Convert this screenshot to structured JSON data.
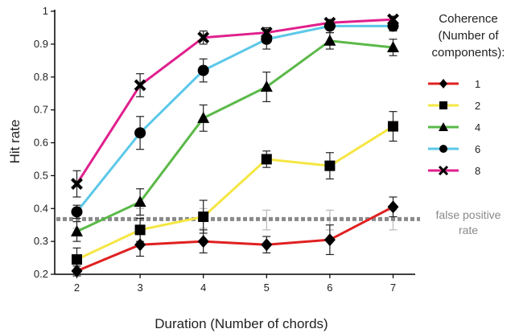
{
  "chart_data": {
    "type": "line",
    "xlabel": "Duration (Number of chords)",
    "ylabel": "Hit rate",
    "x": [
      2,
      3,
      4,
      5,
      6,
      7
    ],
    "xlim": [
      1.65,
      7.35
    ],
    "ylim": [
      0.2,
      1.0
    ],
    "yticks": [
      0.2,
      0.3,
      0.4,
      0.5,
      0.6,
      0.7,
      0.8,
      0.9,
      1
    ],
    "ytick_labels": [
      "0.2",
      "0.3",
      "0.4",
      "0.5",
      "0.6",
      "0.7",
      "0.8",
      "0.9",
      "1"
    ],
    "xtick_labels": [
      "2",
      "3",
      "4",
      "5",
      "6",
      "7"
    ],
    "legend": {
      "title_lines": [
        "Coherence",
        "(Number of",
        "components):"
      ],
      "placement": "right"
    },
    "series": [
      {
        "name": "1",
        "color": "#e02020",
        "marker": "diamond",
        "values": [
          0.21,
          0.29,
          0.3,
          0.29,
          0.305,
          0.405
        ],
        "err": [
          0.015,
          0.035,
          0.035,
          0.025,
          0.045,
          0.03
        ]
      },
      {
        "name": "2",
        "color": "#f5e642",
        "marker": "square",
        "values": [
          0.245,
          0.335,
          0.375,
          0.55,
          0.53,
          0.65
        ],
        "err": [
          0.035,
          0.035,
          0.05,
          0.025,
          0.04,
          0.045
        ]
      },
      {
        "name": "4",
        "color": "#5ab948",
        "marker": "triangle",
        "values": [
          0.33,
          0.42,
          0.675,
          0.77,
          0.91,
          0.89
        ],
        "err": [
          0.03,
          0.04,
          0.04,
          0.045,
          0.025,
          0.025
        ]
      },
      {
        "name": "6",
        "color": "#5bc8e8",
        "marker": "circle",
        "values": [
          0.39,
          0.63,
          0.82,
          0.915,
          0.955,
          0.955
        ],
        "err": [
          0.02,
          0.05,
          0.035,
          0.03,
          0.02,
          0.015
        ]
      },
      {
        "name": "8",
        "color": "#e0208c",
        "marker": "cross",
        "values": [
          0.475,
          0.775,
          0.92,
          0.935,
          0.965,
          0.975
        ],
        "err": [
          0.04,
          0.035,
          0.02,
          0.015,
          0.01,
          0.01
        ]
      }
    ],
    "false_positive": {
      "label_lines": [
        "false positive",
        "rate"
      ],
      "value": 0.368,
      "color": "#8a8a8a",
      "points": [
        {
          "x": 2,
          "y": 0.37,
          "err": 0.03
        },
        {
          "x": 3,
          "y": 0.37,
          "err": 0.03
        },
        {
          "x": 4,
          "y": 0.37,
          "err": 0.03
        },
        {
          "x": 5,
          "y": 0.365,
          "err": 0.03
        },
        {
          "x": 6,
          "y": 0.365,
          "err": 0.03
        },
        {
          "x": 7,
          "y": 0.365,
          "err": 0.03
        }
      ]
    }
  }
}
